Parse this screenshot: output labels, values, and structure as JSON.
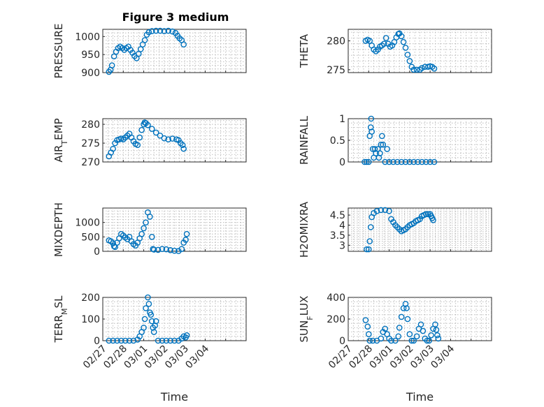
{
  "figure": {
    "title": "Figure 3 medium",
    "color": "#0072BD"
  },
  "chart_data": [
    {
      "type": "scatter",
      "name": "pressure",
      "ylabel": "PRESSURE",
      "ylim": [
        900,
        1020
      ],
      "yticks": [
        900,
        950,
        1000
      ],
      "ytick_labels": [
        "900",
        "950",
        "1000"
      ],
      "xlim": [
        0,
        7
      ],
      "xticks": [
        0,
        1,
        2,
        3,
        4,
        5,
        6
      ],
      "xtick_labels": [],
      "xlabel": "",
      "grid": true,
      "points": [
        [
          0.3,
          902
        ],
        [
          0.38,
          908
        ],
        [
          0.45,
          920
        ],
        [
          0.55,
          945
        ],
        [
          0.65,
          958
        ],
        [
          0.75,
          968
        ],
        [
          0.85,
          972
        ],
        [
          0.95,
          968
        ],
        [
          1.05,
          963
        ],
        [
          1.15,
          968
        ],
        [
          1.25,
          972
        ],
        [
          1.35,
          963
        ],
        [
          1.45,
          955
        ],
        [
          1.55,
          946
        ],
        [
          1.65,
          940
        ],
        [
          1.75,
          952
        ],
        [
          1.85,
          965
        ],
        [
          1.95,
          978
        ],
        [
          2.05,
          990
        ],
        [
          2.15,
          1005
        ],
        [
          2.25,
          1012
        ],
        [
          2.4,
          1015
        ],
        [
          2.6,
          1016
        ],
        [
          2.8,
          1016
        ],
        [
          3.0,
          1015
        ],
        [
          3.2,
          1016
        ],
        [
          3.4,
          1014
        ],
        [
          3.55,
          1010
        ],
        [
          3.65,
          1002
        ],
        [
          3.75,
          995
        ],
        [
          3.85,
          990
        ],
        [
          3.95,
          978
        ]
      ]
    },
    {
      "type": "scatter",
      "name": "theta",
      "ylabel": "THETA",
      "ylim": [
        274.5,
        282
      ],
      "yticks": [
        275,
        280
      ],
      "ytick_labels": [
        "275",
        "280"
      ],
      "xlim": [
        0,
        7
      ],
      "xticks": [
        0,
        1,
        2,
        3,
        4,
        5,
        6
      ],
      "xtick_labels": [],
      "xlabel": "",
      "grid": true,
      "points": [
        [
          0.85,
          280.0
        ],
        [
          0.95,
          280.2
        ],
        [
          1.05,
          280.0
        ],
        [
          1.15,
          279.2
        ],
        [
          1.25,
          278.5
        ],
        [
          1.35,
          278.2
        ],
        [
          1.45,
          278.5
        ],
        [
          1.55,
          279.0
        ],
        [
          1.65,
          279.2
        ],
        [
          1.75,
          279.5
        ],
        [
          1.85,
          280.5
        ],
        [
          1.95,
          279.5
        ],
        [
          2.05,
          279.0
        ],
        [
          2.15,
          279.2
        ],
        [
          2.25,
          279.8
        ],
        [
          2.35,
          280.6
        ],
        [
          2.45,
          281.2
        ],
        [
          2.5,
          281.3
        ],
        [
          2.6,
          280.8
        ],
        [
          2.7,
          279.8
        ],
        [
          2.8,
          278.8
        ],
        [
          2.9,
          277.6
        ],
        [
          3.0,
          276.5
        ],
        [
          3.1,
          275.5
        ],
        [
          3.2,
          275.0
        ],
        [
          3.35,
          275.0
        ],
        [
          3.5,
          275.0
        ],
        [
          3.6,
          275.3
        ],
        [
          3.75,
          275.5
        ],
        [
          3.9,
          275.5
        ],
        [
          4.0,
          275.6
        ],
        [
          4.1,
          275.5
        ],
        [
          4.2,
          275.2
        ]
      ]
    },
    {
      "type": "scatter",
      "name": "air-temp",
      "ylabel": "AIR_TEMP",
      "ylim": [
        270,
        281.5
      ],
      "yticks": [
        270,
        275,
        280
      ],
      "ytick_labels": [
        "270",
        "275",
        "280"
      ],
      "xlim": [
        0,
        7
      ],
      "xticks": [
        0,
        1,
        2,
        3,
        4,
        5,
        6
      ],
      "xtick_labels": [],
      "xlabel": "",
      "grid": true,
      "points": [
        [
          0.3,
          271.5
        ],
        [
          0.4,
          272.5
        ],
        [
          0.5,
          273.5
        ],
        [
          0.6,
          275.0
        ],
        [
          0.7,
          275.8
        ],
        [
          0.8,
          276.0
        ],
        [
          0.9,
          276.2
        ],
        [
          1.0,
          276.0
        ],
        [
          1.1,
          276.5
        ],
        [
          1.2,
          277.0
        ],
        [
          1.3,
          277.5
        ],
        [
          1.4,
          276.5
        ],
        [
          1.5,
          275.5
        ],
        [
          1.6,
          274.8
        ],
        [
          1.7,
          274.5
        ],
        [
          1.8,
          276.5
        ],
        [
          1.9,
          278.5
        ],
        [
          2.0,
          280.0
        ],
        [
          2.05,
          280.5
        ],
        [
          2.1,
          280.3
        ],
        [
          2.2,
          279.8
        ],
        [
          2.4,
          278.8
        ],
        [
          2.6,
          277.8
        ],
        [
          2.8,
          277.0
        ],
        [
          3.0,
          276.3
        ],
        [
          3.2,
          276.0
        ],
        [
          3.4,
          276.2
        ],
        [
          3.6,
          276.0
        ],
        [
          3.7,
          275.8
        ],
        [
          3.8,
          275.0
        ],
        [
          3.9,
          274.5
        ],
        [
          3.95,
          273.5
        ]
      ]
    },
    {
      "type": "scatter",
      "name": "rainfall",
      "ylabel": "RAINFALL",
      "ylim": [
        0,
        1
      ],
      "yticks": [
        0,
        0.5,
        1
      ],
      "ytick_labels": [
        "0",
        "0.5",
        "1"
      ],
      "xlim": [
        0,
        7
      ],
      "xticks": [
        0,
        1,
        2,
        3,
        4,
        5,
        6
      ],
      "xtick_labels": [],
      "xlabel": "",
      "grid": true,
      "points": [
        [
          0.8,
          0
        ],
        [
          0.9,
          0
        ],
        [
          1.0,
          0
        ],
        [
          1.05,
          0.6
        ],
        [
          1.1,
          0.8
        ],
        [
          1.12,
          1.0
        ],
        [
          1.15,
          0.7
        ],
        [
          1.2,
          0.3
        ],
        [
          1.25,
          0.1
        ],
        [
          1.3,
          0.3
        ],
        [
          1.35,
          0.2
        ],
        [
          1.45,
          0.3
        ],
        [
          1.5,
          0.1
        ],
        [
          1.55,
          0.2
        ],
        [
          1.6,
          0.4
        ],
        [
          1.65,
          0.6
        ],
        [
          1.7,
          0.4
        ],
        [
          1.9,
          0.3
        ],
        [
          1.8,
          0
        ],
        [
          2.0,
          0
        ],
        [
          2.2,
          0
        ],
        [
          2.4,
          0
        ],
        [
          2.6,
          0
        ],
        [
          2.8,
          0
        ],
        [
          3.0,
          0
        ],
        [
          3.2,
          0
        ],
        [
          3.4,
          0
        ],
        [
          3.6,
          0
        ],
        [
          3.8,
          0
        ],
        [
          4.0,
          0
        ],
        [
          4.2,
          0
        ]
      ]
    },
    {
      "type": "scatter",
      "name": "mixdepth",
      "ylabel": "MIXDEPTH",
      "ylim": [
        0,
        1500
      ],
      "yticks": [
        0,
        500,
        1000
      ],
      "ytick_labels": [
        "0",
        "500",
        "1000"
      ],
      "xlim": [
        0,
        7
      ],
      "xticks": [
        0,
        1,
        2,
        3,
        4,
        5,
        6
      ],
      "xtick_labels": [],
      "xlabel": "",
      "grid": true,
      "points": [
        [
          0.3,
          380
        ],
        [
          0.4,
          350
        ],
        [
          0.5,
          280
        ],
        [
          0.55,
          180
        ],
        [
          0.6,
          150
        ],
        [
          0.7,
          300
        ],
        [
          0.8,
          450
        ],
        [
          0.9,
          600
        ],
        [
          1.0,
          550
        ],
        [
          1.1,
          480
        ],
        [
          1.2,
          420
        ],
        [
          1.3,
          500
        ],
        [
          1.4,
          350
        ],
        [
          1.5,
          250
        ],
        [
          1.6,
          200
        ],
        [
          1.7,
          300
        ],
        [
          1.8,
          450
        ],
        [
          1.9,
          600
        ],
        [
          2.0,
          800
        ],
        [
          2.1,
          1000
        ],
        [
          2.2,
          1350
        ],
        [
          2.3,
          1200
        ],
        [
          2.4,
          500
        ],
        [
          2.45,
          80
        ],
        [
          2.5,
          60
        ],
        [
          2.7,
          50
        ],
        [
          2.9,
          80
        ],
        [
          3.1,
          70
        ],
        [
          3.3,
          40
        ],
        [
          3.5,
          20
        ],
        [
          3.7,
          10
        ],
        [
          3.85,
          80
        ],
        [
          3.95,
          300
        ],
        [
          4.05,
          400
        ],
        [
          4.1,
          600
        ]
      ]
    },
    {
      "type": "scatter",
      "name": "h2omixra",
      "ylabel": "H2OMIXRA",
      "ylim": [
        2.7,
        4.85
      ],
      "yticks": [
        3,
        3.5,
        4,
        4.5
      ],
      "ytick_labels": [
        "3",
        "3.5",
        "4",
        "4.5"
      ],
      "xlim": [
        0,
        7
      ],
      "xticks": [
        0,
        1,
        2,
        3,
        4,
        5,
        6
      ],
      "xtick_labels": [],
      "xlabel": "",
      "grid": true,
      "points": [
        [
          0.9,
          2.8
        ],
        [
          1.0,
          2.8
        ],
        [
          1.05,
          3.2
        ],
        [
          1.1,
          3.9
        ],
        [
          1.15,
          4.4
        ],
        [
          1.25,
          4.6
        ],
        [
          1.4,
          4.7
        ],
        [
          1.6,
          4.75
        ],
        [
          1.8,
          4.75
        ],
        [
          2.0,
          4.7
        ],
        [
          2.1,
          4.3
        ],
        [
          2.2,
          4.15
        ],
        [
          2.3,
          4.0
        ],
        [
          2.4,
          3.9
        ],
        [
          2.5,
          3.8
        ],
        [
          2.6,
          3.7
        ],
        [
          2.7,
          3.75
        ],
        [
          2.8,
          3.8
        ],
        [
          2.9,
          3.9
        ],
        [
          3.0,
          4.0
        ],
        [
          3.1,
          4.05
        ],
        [
          3.2,
          4.1
        ],
        [
          3.3,
          4.2
        ],
        [
          3.4,
          4.25
        ],
        [
          3.5,
          4.3
        ],
        [
          3.6,
          4.45
        ],
        [
          3.7,
          4.5
        ],
        [
          3.8,
          4.55
        ],
        [
          3.9,
          4.55
        ],
        [
          4.0,
          4.55
        ],
        [
          4.05,
          4.45
        ],
        [
          4.1,
          4.35
        ],
        [
          4.15,
          4.25
        ]
      ]
    },
    {
      "type": "scatter",
      "name": "terr-msl",
      "ylabel": "TERR_MSL",
      "ylim": [
        0,
        200
      ],
      "yticks": [
        0,
        100,
        200
      ],
      "ytick_labels": [
        "0",
        "100",
        "200"
      ],
      "xlim": [
        0,
        7
      ],
      "xticks": [
        0,
        1,
        2,
        3,
        4,
        5,
        6
      ],
      "xtick_labels": [
        "02/27",
        "02/28",
        "03/01",
        "03/02",
        "03/03",
        "03/04"
      ],
      "xlabel": "Time",
      "grid": true,
      "points": [
        [
          0.3,
          0
        ],
        [
          0.5,
          0
        ],
        [
          0.7,
          0
        ],
        [
          0.9,
          0
        ],
        [
          1.1,
          0
        ],
        [
          1.3,
          0
        ],
        [
          1.5,
          0
        ],
        [
          1.7,
          5
        ],
        [
          1.8,
          20
        ],
        [
          1.9,
          40
        ],
        [
          2.0,
          60
        ],
        [
          2.05,
          100
        ],
        [
          2.1,
          150
        ],
        [
          2.2,
          200
        ],
        [
          2.25,
          170
        ],
        [
          2.3,
          130
        ],
        [
          2.35,
          120
        ],
        [
          2.4,
          90
        ],
        [
          2.45,
          60
        ],
        [
          2.5,
          40
        ],
        [
          2.55,
          70
        ],
        [
          2.6,
          90
        ],
        [
          2.7,
          0
        ],
        [
          2.9,
          0
        ],
        [
          3.1,
          0
        ],
        [
          3.3,
          0
        ],
        [
          3.5,
          0
        ],
        [
          3.7,
          0
        ],
        [
          3.85,
          10
        ],
        [
          3.95,
          20
        ],
        [
          4.05,
          15
        ],
        [
          4.1,
          25
        ]
      ]
    },
    {
      "type": "scatter",
      "name": "sun-flux",
      "ylabel": "SUN_FLUX",
      "ylim": [
        0,
        400
      ],
      "yticks": [
        0,
        200,
        400
      ],
      "ytick_labels": [
        "0",
        "200",
        "400"
      ],
      "xlim": [
        0,
        7
      ],
      "xticks": [
        0,
        1,
        2,
        3,
        4,
        5,
        6
      ],
      "xtick_labels": [
        "02/27",
        "02/28",
        "03/01",
        "03/02",
        "03/03",
        "03/04"
      ],
      "xlabel": "Time",
      "grid": true,
      "points": [
        [
          0.85,
          190
        ],
        [
          0.95,
          130
        ],
        [
          1.0,
          60
        ],
        [
          1.05,
          0
        ],
        [
          1.2,
          0
        ],
        [
          1.4,
          0
        ],
        [
          1.6,
          20
        ],
        [
          1.7,
          80
        ],
        [
          1.8,
          110
        ],
        [
          1.9,
          60
        ],
        [
          2.0,
          20
        ],
        [
          2.1,
          0
        ],
        [
          2.3,
          0
        ],
        [
          2.45,
          40
        ],
        [
          2.5,
          120
        ],
        [
          2.6,
          220
        ],
        [
          2.7,
          300
        ],
        [
          2.8,
          340
        ],
        [
          2.85,
          300
        ],
        [
          2.9,
          200
        ],
        [
          3.0,
          60
        ],
        [
          3.1,
          0
        ],
        [
          3.2,
          0
        ],
        [
          3.35,
          40
        ],
        [
          3.45,
          110
        ],
        [
          3.55,
          150
        ],
        [
          3.65,
          90
        ],
        [
          3.75,
          20
        ],
        [
          3.85,
          0
        ],
        [
          3.95,
          0
        ],
        [
          4.05,
          50
        ],
        [
          4.15,
          110
        ],
        [
          4.25,
          150
        ],
        [
          4.3,
          100
        ],
        [
          4.35,
          50
        ],
        [
          4.4,
          20
        ]
      ]
    }
  ]
}
